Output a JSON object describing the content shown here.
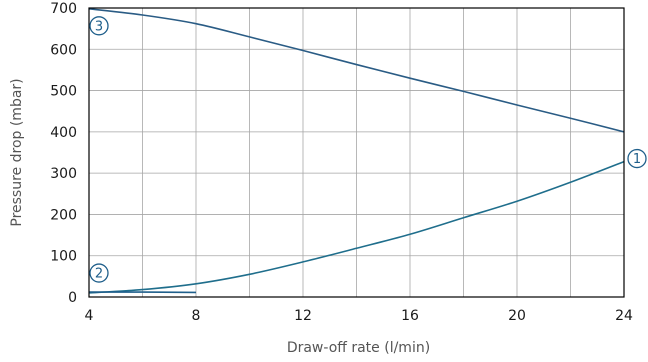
{
  "chart_data": {
    "type": "line",
    "xlabel": "Draw-off rate (l/min)",
    "ylabel": "Pressure drop (mbar)",
    "xlim": [
      4,
      24
    ],
    "ylim": [
      0,
      700
    ],
    "x_ticks": [
      "4",
      "8",
      "12",
      "16",
      "20",
      "24"
    ],
    "y_ticks": [
      "0",
      "100",
      "200",
      "300",
      "400",
      "500",
      "600",
      "700"
    ],
    "grid": true,
    "colors": {
      "curve_1": "#1f6e8c",
      "curve_2": "#1f5f8b",
      "curve_3": "#2a5c85",
      "axis": "#000000",
      "grid": "#a6a6a6",
      "marker": "#1f5f8b"
    },
    "series": [
      {
        "marker": "1",
        "points": [
          [
            4,
            10
          ],
          [
            6,
            18
          ],
          [
            8,
            32
          ],
          [
            10,
            55
          ],
          [
            12,
            85
          ],
          [
            14,
            118
          ],
          [
            16,
            152
          ],
          [
            18,
            192
          ],
          [
            20,
            232
          ],
          [
            22,
            278
          ],
          [
            24,
            328
          ]
        ]
      },
      {
        "marker": "2",
        "points": [
          [
            4,
            12
          ],
          [
            6,
            12
          ],
          [
            8,
            11
          ]
        ]
      },
      {
        "marker": "3",
        "points": [
          [
            4,
            698
          ],
          [
            6,
            683
          ],
          [
            8,
            662
          ],
          [
            10,
            630
          ],
          [
            12,
            597
          ],
          [
            14,
            563
          ],
          [
            16,
            530
          ],
          [
            18,
            498
          ],
          [
            20,
            465
          ],
          [
            22,
            433
          ],
          [
            24,
            400
          ]
        ]
      }
    ]
  }
}
